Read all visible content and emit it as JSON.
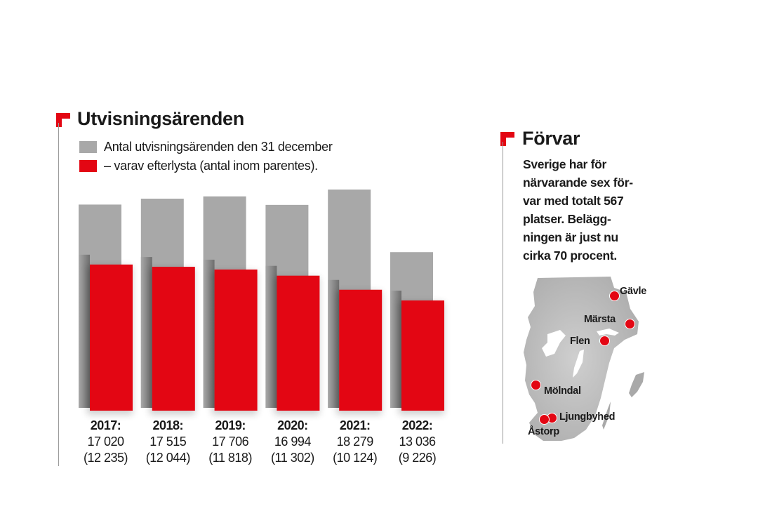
{
  "left_panel": {
    "title": "Utvisningsärenden",
    "legend": [
      {
        "label": "Antal utvisningsärenden den 31 december",
        "color": "#a8a8a8"
      },
      {
        "label": "– varav efterlysta (antal inom parentes).",
        "color": "#e30613"
      }
    ]
  },
  "chart_data": {
    "type": "bar",
    "title": "Utvisningsärenden",
    "xlabel": "",
    "ylabel": "",
    "categories": [
      "2017",
      "2018",
      "2019",
      "2020",
      "2021",
      "2022"
    ],
    "category_labels": [
      "2017:",
      "2018:",
      "2019:",
      "2020:",
      "2021:",
      "2022:"
    ],
    "series": [
      {
        "name": "Antal utvisningsärenden den 31 december",
        "color": "#a8a8a8",
        "values": [
          17020,
          17515,
          17706,
          16994,
          18279,
          13036
        ],
        "labels": [
          "17 020",
          "17 515",
          "17 706",
          "16 994",
          "18 279",
          "13 036"
        ]
      },
      {
        "name": "– varav efterlysta (antal inom parentes).",
        "color": "#e30613",
        "values": [
          12235,
          12044,
          11818,
          11302,
          10124,
          9226
        ],
        "labels": [
          "(12 235)",
          "(12 044)",
          "(11 818)",
          "(11 302)",
          "(10 124)",
          "(9 226)"
        ]
      }
    ],
    "ylim": [
      0,
      18279
    ],
    "grid": false,
    "legend_placement": "top-left",
    "axis_ticks_shown": false
  },
  "right_panel": {
    "title": "Förvar",
    "body": "Sverige har för närvarande sex förvar med totalt 567 platser. Beläggningen är just nu cirka 70 procent.",
    "body_lines": [
      "Sverige har för",
      "närvarande sex för-",
      "var med totalt 567",
      "platser. Belägg-",
      "ningen är just nu",
      "cirka 70 procent."
    ],
    "map": {
      "region": "Södra Sverige",
      "cities": [
        "Gävle",
        "Märsta",
        "Flen",
        "Mölndal",
        "Ljungbyhed",
        "Åstorp"
      ],
      "marker_color": "#e30613",
      "land_color": "#b5b5b5"
    }
  }
}
